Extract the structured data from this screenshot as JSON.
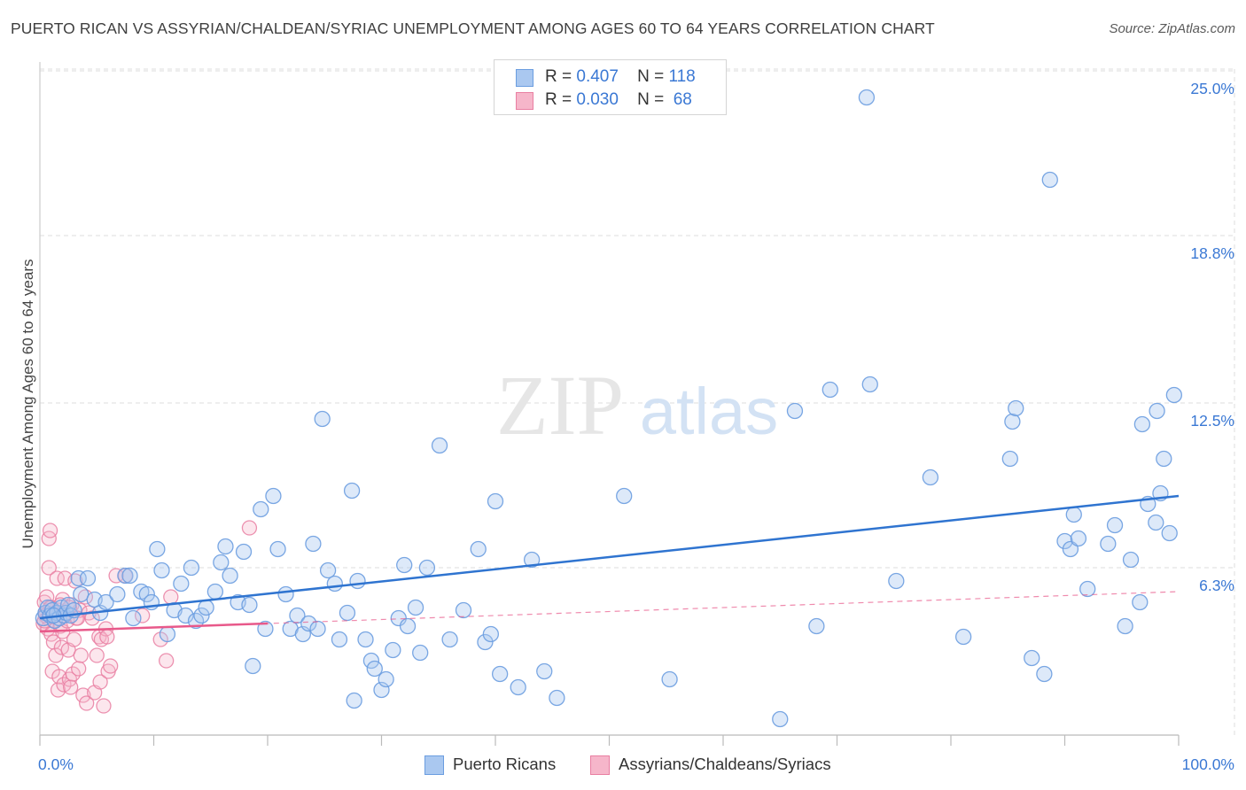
{
  "title": "PUERTO RICAN VS ASSYRIAN/CHALDEAN/SYRIAC UNEMPLOYMENT AMONG AGES 60 TO 64 YEARS CORRELATION CHART",
  "source": "Source: ZipAtlas.com",
  "watermark": {
    "zip": "ZIP",
    "atlas": "atlas"
  },
  "legend": {
    "rows": [
      {
        "r_label": "R =",
        "r_value": "0.407",
        "n_label": "N =",
        "n_value": "118"
      },
      {
        "r_label": "R =",
        "r_value": "0.030",
        "n_label": "N =",
        "n_value": "68"
      }
    ]
  },
  "bottom_legend": {
    "series1": "Puerto Ricans",
    "series2": "Assyrians/Chaldeans/Syriacs"
  },
  "colors": {
    "blue_fill": "#aac8f0",
    "blue_stroke": "#6b9de0",
    "blue_line": "#2f74d0",
    "pink_fill": "#f6b6ca",
    "pink_stroke": "#e97fa2",
    "pink_line": "#e8598a",
    "grid": "#dddddd",
    "tick_label": "#3a78d4"
  },
  "chart_data": {
    "type": "scatter",
    "title": "PUERTO RICAN VS ASSYRIAN/CHALDEAN/SYRIAC UNEMPLOYMENT AMONG AGES 60 TO 64 YEARS CORRELATION CHART",
    "xlabel": "",
    "ylabel": "Unemployment Among Ages 60 to 64 years",
    "xlim": [
      0,
      100
    ],
    "ylim": [
      0,
      25
    ],
    "y_ticks": [
      6.3,
      12.5,
      18.8,
      25.0
    ],
    "y_tick_labels": [
      "6.3%",
      "12.5%",
      "18.8%",
      "25.0%"
    ],
    "x_tick_labels": [
      "0.0%",
      "100.0%"
    ],
    "grid": true,
    "legend_position": "top-center",
    "series": [
      {
        "name": "Puerto Ricans",
        "r": 0.407,
        "n": 118,
        "trend": {
          "x": [
            0,
            100
          ],
          "y": [
            4.4,
            9.0
          ],
          "style": "solid"
        },
        "points": [
          [
            0.3,
            4.4
          ],
          [
            0.5,
            4.6
          ],
          [
            0.7,
            4.8
          ],
          [
            0.9,
            4.5
          ],
          [
            1.1,
            4.7
          ],
          [
            1.3,
            4.3
          ],
          [
            1.5,
            4.6
          ],
          [
            1.7,
            4.4
          ],
          [
            1.9,
            4.8
          ],
          [
            2.1,
            4.5
          ],
          [
            2.3,
            4.6
          ],
          [
            2.5,
            4.9
          ],
          [
            2.7,
            4.5
          ],
          [
            3.0,
            4.7
          ],
          [
            3.4,
            5.9
          ],
          [
            3.6,
            5.3
          ],
          [
            4.2,
            5.9
          ],
          [
            4.8,
            5.1
          ],
          [
            5.3,
            4.6
          ],
          [
            5.8,
            5.0
          ],
          [
            6.8,
            5.3
          ],
          [
            7.5,
            6.0
          ],
          [
            7.9,
            6.0
          ],
          [
            8.2,
            4.4
          ],
          [
            8.9,
            5.4
          ],
          [
            9.4,
            5.3
          ],
          [
            9.8,
            5.0
          ],
          [
            10.3,
            7.0
          ],
          [
            10.7,
            6.2
          ],
          [
            11.2,
            3.8
          ],
          [
            11.8,
            4.7
          ],
          [
            12.4,
            5.7
          ],
          [
            12.8,
            4.5
          ],
          [
            13.3,
            6.3
          ],
          [
            13.7,
            4.3
          ],
          [
            14.2,
            4.5
          ],
          [
            14.6,
            4.8
          ],
          [
            15.4,
            5.4
          ],
          [
            15.9,
            6.5
          ],
          [
            16.3,
            7.1
          ],
          [
            16.7,
            6.0
          ],
          [
            17.4,
            5.0
          ],
          [
            17.9,
            6.9
          ],
          [
            18.4,
            4.9
          ],
          [
            18.7,
            2.6
          ],
          [
            19.4,
            8.5
          ],
          [
            19.8,
            4.0
          ],
          [
            20.5,
            9.0
          ],
          [
            20.9,
            7.0
          ],
          [
            21.6,
            5.3
          ],
          [
            22.0,
            4.0
          ],
          [
            22.6,
            4.5
          ],
          [
            23.1,
            3.8
          ],
          [
            23.6,
            4.2
          ],
          [
            24.0,
            7.2
          ],
          [
            24.4,
            4.0
          ],
          [
            24.8,
            11.9
          ],
          [
            25.3,
            6.2
          ],
          [
            25.9,
            5.7
          ],
          [
            26.3,
            3.6
          ],
          [
            27.0,
            4.6
          ],
          [
            27.4,
            9.2
          ],
          [
            27.9,
            5.8
          ],
          [
            27.6,
            1.3
          ],
          [
            28.6,
            3.6
          ],
          [
            29.1,
            2.8
          ],
          [
            29.4,
            2.5
          ],
          [
            30.0,
            1.7
          ],
          [
            30.4,
            2.1
          ],
          [
            31.0,
            3.2
          ],
          [
            31.5,
            4.4
          ],
          [
            32.0,
            6.4
          ],
          [
            32.3,
            4.1
          ],
          [
            33.0,
            4.8
          ],
          [
            33.4,
            3.1
          ],
          [
            34.0,
            6.3
          ],
          [
            35.1,
            10.9
          ],
          [
            36.0,
            3.6
          ],
          [
            37.2,
            4.7
          ],
          [
            38.5,
            7.0
          ],
          [
            39.1,
            3.5
          ],
          [
            39.6,
            3.8
          ],
          [
            40.0,
            8.8
          ],
          [
            40.4,
            2.3
          ],
          [
            42.0,
            1.8
          ],
          [
            43.2,
            6.6
          ],
          [
            44.3,
            2.4
          ],
          [
            45.4,
            1.4
          ],
          [
            51.3,
            9.0
          ],
          [
            55.3,
            2.1
          ],
          [
            65.0,
            0.6
          ],
          [
            66.3,
            12.2
          ],
          [
            68.2,
            4.1
          ],
          [
            69.4,
            13.0
          ],
          [
            72.6,
            24.0
          ],
          [
            72.9,
            13.2
          ],
          [
            75.2,
            5.8
          ],
          [
            78.2,
            9.7
          ],
          [
            81.1,
            3.7
          ],
          [
            85.2,
            10.4
          ],
          [
            85.4,
            11.8
          ],
          [
            85.7,
            12.3
          ],
          [
            87.1,
            2.9
          ],
          [
            88.2,
            2.3
          ],
          [
            88.7,
            20.9
          ],
          [
            90.0,
            7.3
          ],
          [
            90.5,
            7.0
          ],
          [
            90.8,
            8.3
          ],
          [
            91.2,
            7.4
          ],
          [
            92.0,
            5.5
          ],
          [
            93.8,
            7.2
          ],
          [
            94.4,
            7.9
          ],
          [
            95.3,
            4.1
          ],
          [
            95.8,
            6.6
          ],
          [
            96.6,
            5.0
          ],
          [
            96.8,
            11.7
          ],
          [
            97.3,
            8.7
          ],
          [
            98.4,
            9.1
          ],
          [
            98.1,
            12.2
          ],
          [
            99.2,
            7.6
          ],
          [
            99.6,
            12.8
          ],
          [
            98.7,
            10.4
          ],
          [
            98.0,
            8.0
          ],
          [
            1.2,
            4.5
          ]
        ]
      },
      {
        "name": "Assyrians/Chaldeans/Syriacs",
        "r": 0.03,
        "n": 68,
        "trend_solid": {
          "x": [
            0,
            20
          ],
          "y": [
            3.9,
            4.2
          ]
        },
        "trend_dashed": {
          "x": [
            0,
            100
          ],
          "y": [
            3.9,
            5.4
          ]
        },
        "points": [
          [
            0.3,
            4.2
          ],
          [
            0.4,
            5.0
          ],
          [
            0.5,
            4.6
          ],
          [
            0.6,
            5.2
          ],
          [
            0.7,
            4.0
          ],
          [
            0.7,
            4.4
          ],
          [
            0.8,
            6.3
          ],
          [
            0.8,
            7.4
          ],
          [
            0.9,
            7.7
          ],
          [
            1.0,
            3.8
          ],
          [
            1.0,
            4.8
          ],
          [
            1.1,
            2.4
          ],
          [
            1.2,
            3.5
          ],
          [
            1.3,
            4.3
          ],
          [
            1.4,
            3.0
          ],
          [
            1.5,
            5.9
          ],
          [
            1.6,
            4.7
          ],
          [
            1.6,
            1.7
          ],
          [
            1.7,
            2.2
          ],
          [
            1.8,
            4.1
          ],
          [
            1.9,
            3.3
          ],
          [
            2.0,
            5.1
          ],
          [
            2.0,
            3.9
          ],
          [
            2.1,
            1.9
          ],
          [
            2.2,
            5.9
          ],
          [
            2.3,
            4.6
          ],
          [
            2.4,
            4.3
          ],
          [
            2.5,
            3.2
          ],
          [
            2.6,
            2.1
          ],
          [
            2.7,
            1.8
          ],
          [
            2.8,
            4.9
          ],
          [
            2.9,
            2.3
          ],
          [
            3.0,
            3.6
          ],
          [
            3.1,
            5.8
          ],
          [
            3.2,
            4.4
          ],
          [
            3.4,
            2.5
          ],
          [
            3.5,
            4.7
          ],
          [
            3.6,
            3.0
          ],
          [
            3.8,
            1.5
          ],
          [
            4.0,
            5.2
          ],
          [
            4.1,
            1.2
          ],
          [
            4.3,
            4.6
          ],
          [
            4.6,
            4.4
          ],
          [
            4.8,
            1.6
          ],
          [
            5.0,
            3.0
          ],
          [
            5.2,
            3.7
          ],
          [
            5.3,
            2.0
          ],
          [
            5.4,
            3.6
          ],
          [
            5.6,
            1.1
          ],
          [
            5.8,
            4.0
          ],
          [
            5.9,
            3.7
          ],
          [
            6.0,
            2.4
          ],
          [
            6.2,
            2.6
          ],
          [
            6.7,
            6.0
          ],
          [
            7.5,
            6.0
          ],
          [
            9.0,
            4.5
          ],
          [
            10.6,
            3.6
          ],
          [
            11.1,
            2.8
          ],
          [
            11.5,
            5.2
          ],
          [
            18.4,
            7.8
          ],
          [
            0.5,
            4.5
          ],
          [
            1.3,
            4.5
          ],
          [
            2.1,
            4.5
          ],
          [
            1.8,
            4.9
          ],
          [
            0.9,
            4.8
          ],
          [
            2.6,
            4.8
          ],
          [
            0.4,
            4.3
          ],
          [
            3.3,
            4.4
          ]
        ]
      }
    ]
  }
}
